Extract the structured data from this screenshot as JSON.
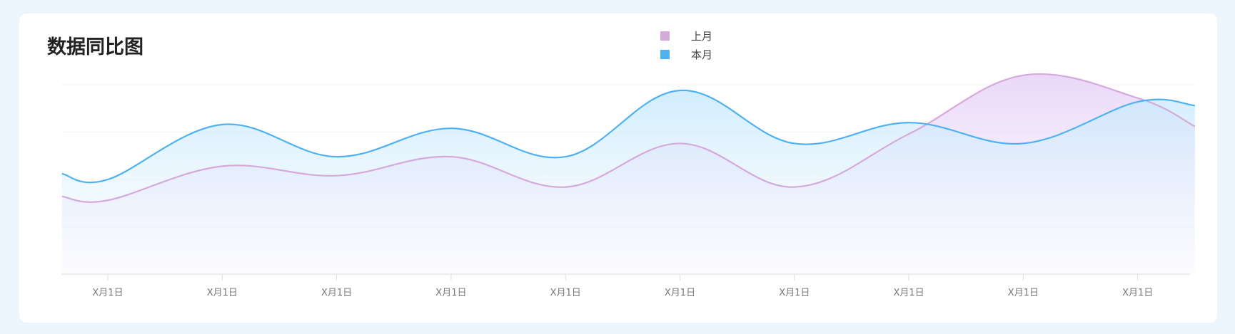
{
  "chart_data": {
    "type": "area",
    "title": "数据同比图",
    "legend_position": "top-center",
    "grid": true,
    "ylim": [
      0,
      100
    ],
    "categories": [
      "X月1日",
      "X月1日",
      "X月1日",
      "X月1日",
      "X月1日",
      "X月1日",
      "X月1日",
      "X月1日",
      "X月1日",
      "X月1日"
    ],
    "series": [
      {
        "name": "上月",
        "color": "#d6a9dc",
        "x": [
          -0.4,
          0,
          1,
          2,
          3,
          4,
          5,
          6,
          7,
          8,
          9,
          9.5
        ],
        "values": [
          41,
          39,
          57,
          52,
          62,
          46,
          69,
          46,
          74,
          105,
          93,
          78
        ]
      },
      {
        "name": "本月",
        "color": "#4db2f5",
        "x": [
          -0.4,
          0,
          1,
          2,
          3,
          4,
          5,
          6,
          7,
          8,
          9,
          9.5
        ],
        "values": [
          53,
          50,
          79,
          62,
          77,
          62,
          97,
          69,
          80,
          69,
          91,
          89
        ]
      }
    ]
  }
}
